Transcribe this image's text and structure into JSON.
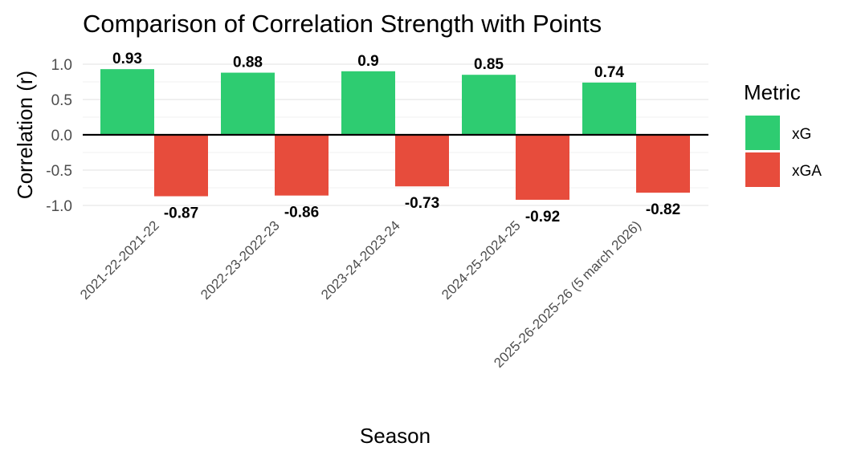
{
  "chart_data": {
    "type": "bar",
    "title": "Comparison of Correlation Strength with Points",
    "xlabel": "Season",
    "ylabel": "Correlation (r)",
    "ylim": [
      -1.0,
      1.0
    ],
    "yticks": [
      1.0,
      0.5,
      0.0,
      -0.5,
      -1.0
    ],
    "ytick_labels": [
      "1.0",
      "0.5",
      "0.0",
      "-0.5",
      "-1.0"
    ],
    "categories": [
      "2021-22-2021-22",
      "2022-23-2022-23",
      "2023-24-2023-24",
      "2024-25-2024-25",
      "2025-26-2025-26 (5 march 2026)"
    ],
    "series": [
      {
        "name": "xG",
        "color": "#2ecc71",
        "values": [
          0.93,
          0.88,
          0.9,
          0.85,
          0.74
        ],
        "labels": [
          "0.93",
          "0.88",
          "0.9",
          "0.85",
          "0.74"
        ]
      },
      {
        "name": "xGA",
        "color": "#e74c3c",
        "values": [
          -0.87,
          -0.86,
          -0.73,
          -0.92,
          -0.82
        ],
        "labels": [
          "-0.87",
          "-0.86",
          "-0.73",
          "-0.92",
          "-0.82"
        ]
      }
    ],
    "legend": {
      "title": "Metric",
      "position": "right"
    },
    "grid": true
  }
}
